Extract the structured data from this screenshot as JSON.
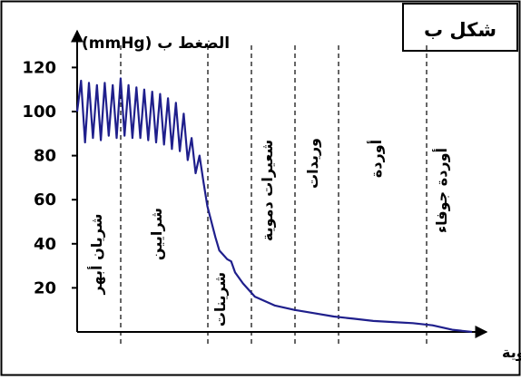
{
  "figure": {
    "label": "شكل ب"
  },
  "chart_data": {
    "type": "line",
    "ylabel": "الضغط ب (mmHg)",
    "xlabel": "قطر الأوعية الدموية",
    "y_ticks": [
      "120",
      "100",
      "80",
      "60",
      "40",
      "20"
    ],
    "y_tick_values": [
      120,
      100,
      80,
      60,
      40,
      20
    ],
    "ylim": [
      0,
      130
    ],
    "grid": false,
    "regions": [
      {
        "name": "شريان أبهر"
      },
      {
        "name": "شرايين"
      },
      {
        "name": "شرينات"
      },
      {
        "name": "شعيرات دموية"
      },
      {
        "name": "وريدات"
      },
      {
        "name": "أوردة"
      },
      {
        "name": "أوردة جوفاء"
      }
    ],
    "series": [
      {
        "color": "#1f1f8c",
        "x": [
          0,
          0.1,
          0.2,
          0.3,
          0.4,
          0.5,
          0.6,
          0.7,
          0.8,
          0.9,
          1.0,
          1.1,
          1.2,
          1.3,
          1.4,
          1.5,
          1.6,
          1.7,
          1.8,
          1.9,
          2.0,
          2.1,
          2.2,
          2.3,
          2.4,
          2.5,
          2.6,
          2.7,
          2.8,
          2.9,
          3.0,
          3.1,
          3.2,
          3.3,
          3.4,
          3.5,
          3.6,
          3.7,
          3.8,
          3.9,
          4.0,
          4.2,
          4.5,
          5.0,
          5.5,
          6.0,
          6.5,
          7.0,
          7.5,
          8.0,
          8.5,
          9.0,
          9.5,
          10.0
        ],
        "values": [
          100,
          114,
          86,
          113,
          88,
          112,
          87,
          113,
          89,
          112,
          88,
          115,
          89,
          112,
          88,
          111,
          88,
          110,
          87,
          109,
          86,
          108,
          85,
          106,
          83,
          104,
          82,
          99,
          78,
          88,
          72,
          80,
          68,
          57,
          50,
          43,
          37,
          35,
          33,
          32,
          27,
          22,
          16,
          12,
          10,
          8.5,
          7,
          6,
          5,
          4.5,
          4,
          3,
          1,
          0
        ]
      }
    ]
  }
}
